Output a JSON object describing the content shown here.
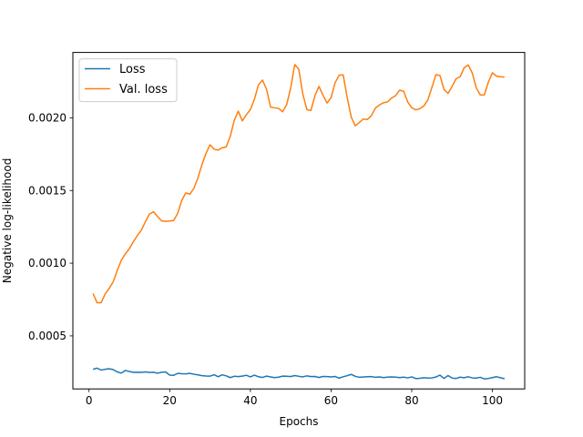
{
  "chart_data": {
    "type": "line",
    "title": "",
    "xlabel": "Epochs",
    "ylabel": "Negative log-likelihood",
    "xlim": [
      -4,
      108
    ],
    "ylim": [
      0.000135,
      0.00245
    ],
    "xticks": [
      0,
      20,
      40,
      60,
      80,
      100
    ],
    "xtick_labels": [
      "0",
      "20",
      "40",
      "60",
      "80",
      "100"
    ],
    "yticks": [
      0.0005,
      0.001,
      0.0015,
      0.002
    ],
    "ytick_labels": [
      "0.0005",
      "0.0010",
      "0.0015",
      "0.0020"
    ],
    "grid": false,
    "legend_position": "top-left",
    "colors": {
      "loss": "#1f77b4",
      "val_loss": "#ff7f0e"
    },
    "series": [
      {
        "name": "Loss",
        "color": "#1f77b4",
        "x": [
          1,
          2,
          3,
          4,
          5,
          6,
          7,
          8,
          9,
          10,
          11,
          12,
          13,
          14,
          15,
          16,
          17,
          18,
          19,
          20,
          21,
          22,
          23,
          24,
          25,
          26,
          27,
          28,
          29,
          30,
          31,
          32,
          33,
          34,
          35,
          36,
          37,
          38,
          39,
          40,
          41,
          42,
          43,
          44,
          45,
          46,
          47,
          48,
          49,
          50,
          51,
          52,
          53,
          54,
          55,
          56,
          57,
          58,
          59,
          60,
          61,
          62,
          63,
          64,
          65,
          66,
          67,
          68,
          69,
          70,
          71,
          72,
          73,
          74,
          75,
          76,
          77,
          78,
          79,
          80,
          81,
          82,
          83,
          84,
          85,
          86,
          87,
          88,
          89,
          90,
          91,
          92,
          93,
          94,
          95,
          96,
          97,
          98,
          99,
          100,
          101,
          102,
          103
        ],
        "values": [
          0.00027,
          0.000278,
          0.000265,
          0.00027,
          0.000274,
          0.000268,
          0.000252,
          0.000244,
          0.000262,
          0.000255,
          0.000249,
          0.00025,
          0.000249,
          0.000252,
          0.000248,
          0.00025,
          0.000243,
          0.00025,
          0.000252,
          0.00023,
          0.000229,
          0.000242,
          0.00024,
          0.000239,
          0.000242,
          0.000236,
          0.000232,
          0.000226,
          0.000224,
          0.000223,
          0.000233,
          0.000219,
          0.000232,
          0.000225,
          0.000213,
          0.000222,
          0.00022,
          0.000223,
          0.000229,
          0.000218,
          0.00023,
          0.000219,
          0.000214,
          0.000223,
          0.000218,
          0.000213,
          0.000216,
          0.000223,
          0.000222,
          0.00022,
          0.000227,
          0.000222,
          0.000218,
          0.000225,
          0.00022,
          0.000221,
          0.000214,
          0.000221,
          0.00022,
          0.000218,
          0.000221,
          0.000209,
          0.000219,
          0.000226,
          0.000235,
          0.000222,
          0.000215,
          0.000217,
          0.000219,
          0.00022,
          0.000215,
          0.000218,
          0.000213,
          0.000216,
          0.000218,
          0.000216,
          0.000213,
          0.000216,
          0.000211,
          0.000218,
          0.000206,
          0.000208,
          0.000212,
          0.00021,
          0.000211,
          0.000217,
          0.00023,
          0.000207,
          0.000227,
          0.00021,
          0.000207,
          0.000216,
          0.000212,
          0.000219,
          0.000211,
          0.00021,
          0.000215,
          0.000204,
          0.000207,
          0.000213,
          0.000219,
          0.000212,
          0.000205
        ]
      },
      {
        "name": "Val. loss",
        "color": "#ff7f0e",
        "x": [
          1,
          2,
          3,
          4,
          5,
          6,
          7,
          8,
          9,
          10,
          11,
          12,
          13,
          14,
          15,
          16,
          17,
          18,
          19,
          20,
          21,
          22,
          23,
          24,
          25,
          26,
          27,
          28,
          29,
          30,
          31,
          32,
          33,
          34,
          35,
          36,
          37,
          38,
          39,
          40,
          41,
          42,
          43,
          44,
          45,
          46,
          47,
          48,
          49,
          50,
          51,
          52,
          53,
          54,
          55,
          56,
          57,
          58,
          59,
          60,
          61,
          62,
          63,
          64,
          65,
          66,
          67,
          68,
          69,
          70,
          71,
          72,
          73,
          74,
          75,
          76,
          77,
          78,
          79,
          80,
          81,
          82,
          83,
          84,
          85,
          86,
          87,
          88,
          89,
          90,
          91,
          92,
          93,
          94,
          95,
          96,
          97,
          98,
          99,
          100,
          101,
          102,
          103
        ],
        "values": [
          0.000791,
          0.000728,
          0.000728,
          0.000788,
          0.000827,
          0.000872,
          0.00095,
          0.00102,
          0.001064,
          0.0011,
          0.001148,
          0.001191,
          0.001229,
          0.001287,
          0.001339,
          0.001354,
          0.001321,
          0.001291,
          0.001288,
          0.00129,
          0.001294,
          0.001344,
          0.001433,
          0.001484,
          0.001475,
          0.001515,
          0.001587,
          0.001679,
          0.001755,
          0.001815,
          0.001784,
          0.001778,
          0.001794,
          0.0018,
          0.001871,
          0.001983,
          0.002046,
          0.001979,
          0.002022,
          0.002056,
          0.002128,
          0.002227,
          0.00226,
          0.002197,
          0.002074,
          0.002069,
          0.002065,
          0.002042,
          0.002091,
          0.002207,
          0.002367,
          0.002334,
          0.002164,
          0.002057,
          0.00205,
          0.002152,
          0.002216,
          0.002156,
          0.002102,
          0.002139,
          0.002242,
          0.002293,
          0.002296,
          0.00214,
          0.002005,
          0.001945,
          0.001968,
          0.001992,
          0.001989,
          0.002015,
          0.002068,
          0.002089,
          0.002104,
          0.00211,
          0.002136,
          0.002153,
          0.00219,
          0.002183,
          0.002109,
          0.00207,
          0.002055,
          0.002063,
          0.002082,
          0.002124,
          0.00221,
          0.002297,
          0.002291,
          0.002195,
          0.002168,
          0.002216,
          0.002269,
          0.002283,
          0.002345,
          0.002364,
          0.002308,
          0.002206,
          0.002157,
          0.002158,
          0.002247,
          0.00231,
          0.002287,
          0.002282,
          0.002281
        ]
      }
    ]
  }
}
